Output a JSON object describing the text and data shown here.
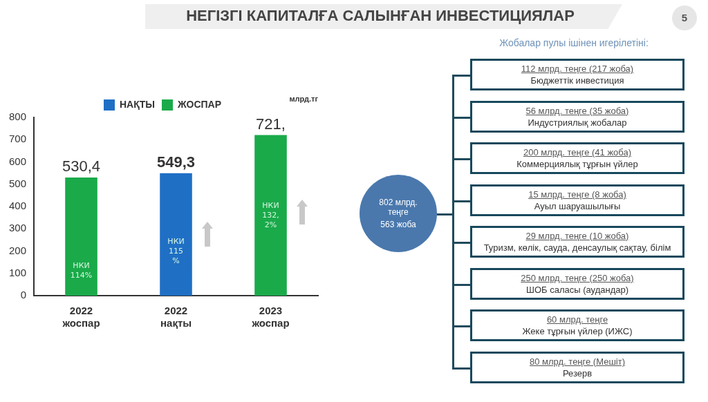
{
  "chart_data": [
    {
      "type": "bar",
      "title": "НЕГІЗГІ КАПИТАЛҒА САЛЫНҒАН ИНВЕСТИЦИЯЛАР",
      "ylabel": "млрд.тг",
      "categories": [
        "2022 жоспар",
        "2022 нақты",
        "2023 жоспар"
      ],
      "series": [
        {
          "name": "НАҚТЫ",
          "color": "#1f6fc5",
          "values": [
            null,
            549.3,
            null
          ],
          "value_labels": [
            null,
            "549,3",
            null
          ]
        },
        {
          "name": "ЖОСПАР",
          "color": "#1aaa4a",
          "values": [
            530.4,
            null,
            721
          ],
          "value_labels": [
            "530,4",
            null,
            "721,"
          ]
        }
      ],
      "ylim": [
        0,
        800
      ],
      "yticks": [
        0,
        100,
        200,
        300,
        400,
        500,
        600,
        700,
        800
      ],
      "legend": "top",
      "annotations": [
        "НКИ 114%",
        "НКИ 115 %",
        "НКИ 132, 2%",
        "5"
      ]
    },
    {
      "type": "other",
      "title": "Жобалар пулы ішінен игерілетіні:",
      "annotations": [
        "802 млрд. теңге\n563 жоба",
        "112 млрд. теңге (217 жоба)\nБюджеттік инвестиция",
        "56 млрд. теңге (35 жоба)\nИндустриялық жобалар",
        "200 млрд. теңге (41 жоба)\nКоммерциялық тұрғын үйлер",
        "15 млрд. теңге (8 жоба)\nАуыл шаруашылығы",
        "29 млрд. теңге (10 жоба)\nТуризм, көлік, сауда, денсаулық сақтау, білім",
        "250 млрд. теңге (250 жоба)\nШОБ саласы (аудандар)",
        "60 млрд. теңге\nЖеке тұрғын үйлер (ИЖС)",
        "80 млрд. теңге (Мешіт)\nРезерв"
      ]
    }
  ]
}
